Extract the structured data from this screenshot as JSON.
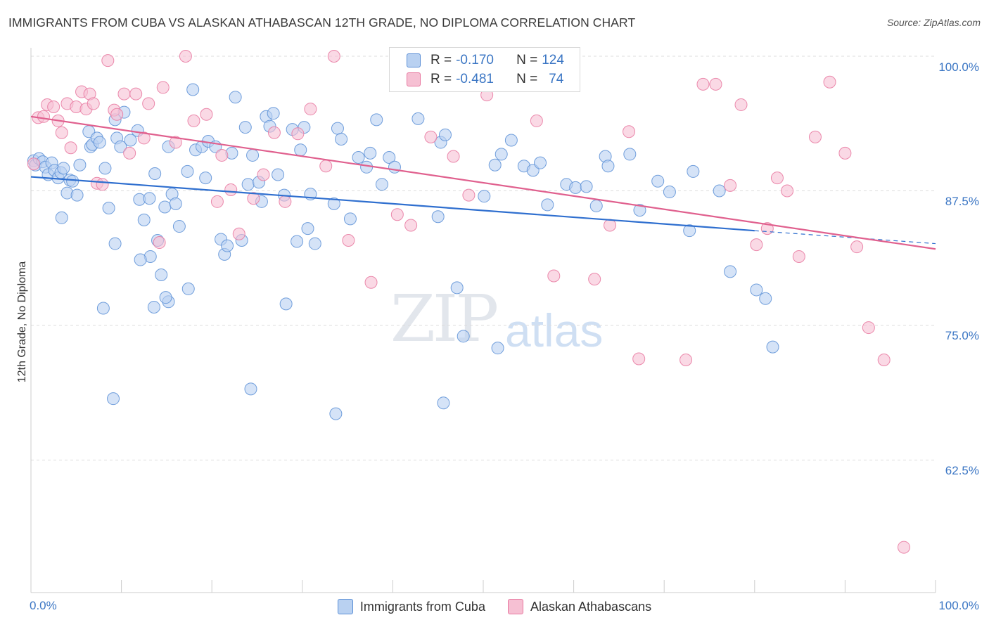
{
  "title": "IMMIGRANTS FROM CUBA VS ALASKAN ATHABASCAN 12TH GRADE, NO DIPLOMA CORRELATION CHART",
  "source": "Source: ZipAtlas.com",
  "watermark": {
    "zip": "ZIP",
    "atlas": "atlas"
  },
  "colors": {
    "blue": "#5b8fd6",
    "blue_fill": "#b9d1f1",
    "pink": "#e8779f",
    "pink_fill": "#f6c0d3",
    "axis_text": "#3b76c4"
  },
  "legend_top": {
    "rows": [
      {
        "r_label": "R =",
        "r_value": "-0.170",
        "n_label": "N =",
        "n_value": "124"
      },
      {
        "r_label": "R =",
        "r_value": "-0.481",
        "n_label": "N =",
        "n_value": "74"
      }
    ]
  },
  "legend_bottom": [
    "Immigrants from Cuba",
    "Alaskan Athabascans"
  ],
  "chart_data": {
    "type": "scatter",
    "title": "IMMIGRANTS FROM CUBA VS ALASKAN ATHABASCAN 12TH GRADE, NO DIPLOMA CORRELATION CHART",
    "xlabel": "",
    "ylabel": "12th Grade, No Diploma",
    "xlim": [
      0,
      100
    ],
    "ylim": [
      50.5,
      101.3
    ],
    "x_tick_labels": [
      "0.0%",
      "100.0%"
    ],
    "y_ticks": [
      100.0,
      87.5,
      75.0,
      62.5
    ],
    "y_tick_labels": [
      "100.0%",
      "87.5%",
      "75.0%",
      "62.5%"
    ],
    "grid": "horizontal dashed",
    "legend_position": "top-center",
    "series": [
      {
        "name": "Immigrants from Cuba",
        "r": -0.17,
        "n": 124,
        "trend": {
          "x": [
            0,
            80.0
          ],
          "y": [
            88.8,
            83.8
          ],
          "dashed_extension": {
            "x": [
              80.0,
              100
            ],
            "y": [
              83.8,
              82.6
            ]
          }
        },
        "points": [
          [
            0.3,
            90.3
          ],
          [
            0.5,
            89.9
          ],
          [
            0.9,
            90.5
          ],
          [
            1.3,
            90.2
          ],
          [
            1.6,
            89.7
          ],
          [
            1.9,
            89.0
          ],
          [
            2.3,
            90.1
          ],
          [
            2.6,
            89.4
          ],
          [
            3.0,
            88.7
          ],
          [
            3.3,
            89.2
          ],
          [
            3.6,
            89.6
          ],
          [
            4.0,
            87.3
          ],
          [
            4.3,
            88.5
          ],
          [
            4.6,
            88.4
          ],
          [
            5.1,
            87.1
          ],
          [
            5.4,
            89.9
          ],
          [
            3.4,
            85.0
          ],
          [
            6.4,
            93.0
          ],
          [
            6.6,
            91.6
          ],
          [
            6.8,
            91.8
          ],
          [
            7.3,
            92.4
          ],
          [
            7.6,
            92.0
          ],
          [
            8.2,
            89.6
          ],
          [
            8.6,
            85.9
          ],
          [
            9.3,
            94.1
          ],
          [
            9.5,
            92.4
          ],
          [
            9.9,
            91.6
          ],
          [
            10.3,
            94.8
          ],
          [
            11.0,
            92.2
          ],
          [
            11.8,
            93.1
          ],
          [
            12.0,
            86.7
          ],
          [
            12.5,
            84.8
          ],
          [
            13.1,
            86.8
          ],
          [
            13.7,
            89.1
          ],
          [
            14.0,
            82.9
          ],
          [
            13.2,
            81.4
          ],
          [
            14.4,
            79.7
          ],
          [
            12.1,
            81.1
          ],
          [
            14.8,
            86.0
          ],
          [
            15.2,
            91.6
          ],
          [
            15.6,
            87.2
          ],
          [
            16.0,
            86.3
          ],
          [
            16.4,
            84.2
          ],
          [
            17.3,
            89.3
          ],
          [
            17.9,
            96.9
          ],
          [
            18.2,
            91.3
          ],
          [
            18.9,
            91.6
          ],
          [
            19.3,
            88.7
          ],
          [
            19.6,
            92.1
          ],
          [
            20.4,
            91.6
          ],
          [
            21.0,
            83.0
          ],
          [
            21.4,
            81.6
          ],
          [
            21.7,
            82.4
          ],
          [
            22.2,
            91.0
          ],
          [
            22.6,
            96.2
          ],
          [
            23.3,
            82.9
          ],
          [
            23.7,
            93.4
          ],
          [
            24.0,
            88.1
          ],
          [
            24.5,
            90.8
          ],
          [
            25.2,
            88.3
          ],
          [
            25.5,
            86.5
          ],
          [
            26.0,
            94.4
          ],
          [
            26.4,
            93.5
          ],
          [
            26.8,
            94.7
          ],
          [
            27.3,
            89.0
          ],
          [
            28.0,
            87.1
          ],
          [
            28.9,
            93.2
          ],
          [
            29.4,
            82.8
          ],
          [
            29.8,
            91.3
          ],
          [
            30.2,
            93.4
          ],
          [
            30.6,
            84.0
          ],
          [
            30.9,
            87.2
          ],
          [
            31.4,
            82.6
          ],
          [
            33.5,
            86.3
          ],
          [
            33.9,
            93.3
          ],
          [
            34.3,
            92.3
          ],
          [
            35.3,
            84.9
          ],
          [
            36.2,
            90.6
          ],
          [
            37.1,
            89.7
          ],
          [
            37.5,
            91.0
          ],
          [
            38.2,
            94.1
          ],
          [
            38.8,
            88.1
          ],
          [
            39.6,
            90.6
          ],
          [
            40.2,
            89.7
          ],
          [
            42.8,
            94.2
          ],
          [
            45.0,
            85.1
          ],
          [
            45.3,
            92.0
          ],
          [
            45.8,
            92.7
          ],
          [
            47.1,
            78.5
          ],
          [
            47.8,
            74.0
          ],
          [
            50.1,
            87.0
          ],
          [
            51.3,
            89.9
          ],
          [
            52.0,
            90.9
          ],
          [
            53.1,
            92.2
          ],
          [
            54.5,
            89.8
          ],
          [
            55.5,
            89.4
          ],
          [
            56.3,
            90.1
          ],
          [
            57.1,
            86.2
          ],
          [
            59.2,
            88.1
          ],
          [
            60.2,
            87.8
          ],
          [
            61.4,
            87.9
          ],
          [
            62.5,
            86.1
          ],
          [
            63.5,
            90.7
          ],
          [
            63.8,
            89.8
          ],
          [
            66.2,
            90.9
          ],
          [
            67.3,
            85.7
          ],
          [
            69.3,
            88.4
          ],
          [
            70.6,
            87.4
          ],
          [
            72.8,
            83.8
          ],
          [
            73.2,
            89.3
          ],
          [
            76.1,
            87.5
          ],
          [
            77.3,
            80.0
          ],
          [
            80.2,
            78.3
          ],
          [
            81.2,
            77.5
          ],
          [
            82.0,
            73.0
          ],
          [
            13.6,
            76.7
          ],
          [
            15.2,
            77.2
          ],
          [
            24.3,
            69.1
          ],
          [
            28.2,
            77.0
          ],
          [
            33.7,
            66.8
          ],
          [
            45.6,
            67.8
          ],
          [
            51.6,
            72.9
          ],
          [
            9.1,
            68.2
          ],
          [
            14.9,
            77.6
          ],
          [
            8.0,
            76.6
          ],
          [
            17.4,
            78.4
          ],
          [
            9.3,
            82.6
          ]
        ]
      },
      {
        "name": "Alaskan Athabascans",
        "r": -0.481,
        "n": 74,
        "trend": {
          "x": [
            0,
            100
          ],
          "y": [
            94.4,
            82.1
          ]
        },
        "points": [
          [
            0.3,
            90.0
          ],
          [
            0.8,
            94.3
          ],
          [
            1.4,
            94.4
          ],
          [
            1.8,
            95.5
          ],
          [
            2.5,
            95.3
          ],
          [
            3.0,
            94.0
          ],
          [
            3.4,
            92.9
          ],
          [
            4.0,
            95.6
          ],
          [
            4.4,
            91.5
          ],
          [
            5.0,
            95.3
          ],
          [
            5.6,
            96.7
          ],
          [
            6.1,
            95.1
          ],
          [
            6.5,
            96.5
          ],
          [
            6.9,
            95.6
          ],
          [
            7.3,
            88.2
          ],
          [
            7.9,
            88.1
          ],
          [
            8.5,
            99.6
          ],
          [
            9.2,
            95.0
          ],
          [
            9.5,
            94.6
          ],
          [
            10.3,
            96.5
          ],
          [
            10.9,
            91.0
          ],
          [
            11.6,
            96.5
          ],
          [
            12.5,
            92.4
          ],
          [
            13.0,
            95.6
          ],
          [
            14.2,
            82.7
          ],
          [
            14.6,
            97.1
          ],
          [
            16.0,
            92.0
          ],
          [
            17.1,
            100.0
          ],
          [
            18.0,
            94.0
          ],
          [
            19.4,
            94.6
          ],
          [
            20.6,
            86.5
          ],
          [
            21.1,
            90.8
          ],
          [
            22.1,
            87.6
          ],
          [
            23.0,
            83.5
          ],
          [
            24.6,
            86.8
          ],
          [
            25.7,
            89.0
          ],
          [
            26.9,
            92.9
          ],
          [
            28.1,
            86.5
          ],
          [
            29.5,
            92.8
          ],
          [
            30.9,
            95.1
          ],
          [
            32.6,
            89.8
          ],
          [
            33.5,
            100.0
          ],
          [
            35.1,
            82.9
          ],
          [
            37.6,
            79.0
          ],
          [
            40.5,
            85.3
          ],
          [
            42.0,
            84.3
          ],
          [
            44.2,
            92.5
          ],
          [
            46.7,
            90.7
          ],
          [
            48.4,
            87.1
          ],
          [
            50.4,
            96.4
          ],
          [
            52.7,
            100.0
          ],
          [
            55.9,
            94.0
          ],
          [
            57.8,
            79.6
          ],
          [
            62.3,
            79.3
          ],
          [
            64.0,
            84.3
          ],
          [
            66.1,
            93.0
          ],
          [
            67.2,
            71.9
          ],
          [
            72.4,
            71.8
          ],
          [
            74.3,
            97.4
          ],
          [
            75.7,
            97.4
          ],
          [
            77.3,
            88.0
          ],
          [
            78.5,
            95.5
          ],
          [
            80.2,
            82.5
          ],
          [
            81.4,
            84.0
          ],
          [
            82.5,
            88.7
          ],
          [
            83.6,
            87.5
          ],
          [
            84.9,
            81.4
          ],
          [
            86.7,
            92.5
          ],
          [
            88.3,
            97.6
          ],
          [
            90.0,
            91.0
          ],
          [
            91.3,
            82.3
          ],
          [
            92.6,
            74.8
          ],
          [
            94.3,
            71.8
          ],
          [
            96.5,
            54.4
          ]
        ]
      }
    ]
  }
}
